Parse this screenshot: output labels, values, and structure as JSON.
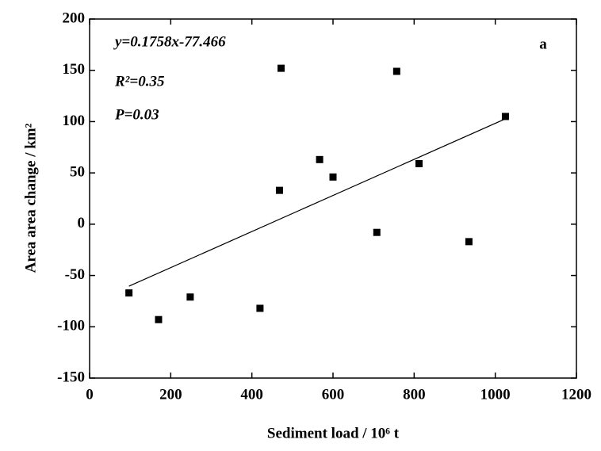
{
  "chart_data": {
    "type": "scatter",
    "xlabel": "Sediment load / 10⁶ t",
    "ylabel": "Area area change / km²",
    "annotations": [
      "y=0.1758x-77.466",
      "R²=0.35",
      "P=0.03",
      "a"
    ],
    "series": [
      {
        "color": "#000000",
        "x": [
          97,
          170,
          248,
          420,
          468,
          472,
          567,
          600,
          708,
          757,
          812,
          935,
          1025
        ],
        "values": [
          -67,
          -93,
          -71,
          -82,
          33,
          152,
          63,
          46,
          -8,
          149,
          59,
          -17,
          105
        ]
      }
    ],
    "fit": {
      "color": "#000000",
      "x": [
        97,
        1025
      ],
      "values": [
        -60.41,
        102.73
      ]
    },
    "xlim": [
      0,
      1200
    ],
    "xticks": [
      0,
      200,
      400,
      600,
      800,
      1000,
      1200
    ],
    "ylim": [
      -150,
      200
    ],
    "yticks": [
      -150,
      -100,
      -50,
      0,
      50,
      100,
      150,
      200
    ],
    "grid": false
  }
}
